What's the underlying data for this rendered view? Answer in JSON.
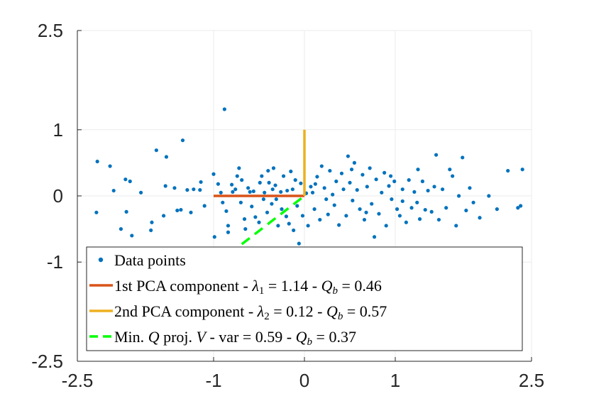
{
  "chart_data": {
    "type": "scatter",
    "title": "",
    "xlabel": "",
    "ylabel": "",
    "xlim": [
      -2.5,
      2.5
    ],
    "ylim": [
      -2.5,
      2.5
    ],
    "grid": true,
    "legend_location": "bottom",
    "x_ticks": [
      {
        "value": -2.5,
        "label": "-2.5"
      },
      {
        "value": -1,
        "label": "-1"
      },
      {
        "value": 0,
        "label": "0"
      },
      {
        "value": 1,
        "label": "1"
      },
      {
        "value": 2.5,
        "label": "2.5"
      }
    ],
    "y_ticks": [
      {
        "value": -2.5,
        "label": "-2.5"
      },
      {
        "value": -1,
        "label": "-1"
      },
      {
        "value": 0,
        "label": "0"
      },
      {
        "value": 1,
        "label": "1"
      },
      {
        "value": 2.5,
        "label": "2.5"
      }
    ],
    "colors": {
      "data_points": "#0072BD",
      "first_pca": "#D95319",
      "second_pca": "#EDB120",
      "min_q_proj": "#00FF00",
      "grid": "#EBEBEB",
      "axis": "#262626"
    },
    "series": [
      {
        "name": "Data points",
        "kind": "scatter",
        "points": [
          [
            -0.88,
            1.31
          ],
          [
            -1.63,
            0.69
          ],
          [
            -1.34,
            0.84
          ],
          [
            -1.52,
            0.59
          ],
          [
            -2.28,
            0.52
          ],
          [
            -2.14,
            0.45
          ],
          [
            -2.1,
            0.08
          ],
          [
            -1.97,
            0.25
          ],
          [
            -1.92,
            0.22
          ],
          [
            -2.29,
            -0.25
          ],
          [
            -1.96,
            -0.24
          ],
          [
            -2.02,
            -0.5
          ],
          [
            -1.9,
            -0.6
          ],
          [
            -1.68,
            -0.4
          ],
          [
            -1.69,
            -0.52
          ],
          [
            -1.55,
            -0.3
          ],
          [
            -1.53,
            0.15
          ],
          [
            -1.43,
            0.12
          ],
          [
            -1.36,
            -0.21
          ],
          [
            -1.4,
            -0.22
          ],
          [
            -1.29,
            0.09
          ],
          [
            -1.22,
            0.1
          ],
          [
            -1.25,
            -0.25
          ],
          [
            -1.15,
            0.09
          ],
          [
            -1.14,
            0.21
          ],
          [
            -1.0,
            0.33
          ],
          [
            -0.99,
            -0.62
          ],
          [
            -0.95,
            0.18
          ],
          [
            -0.92,
            0.05
          ],
          [
            -0.9,
            -0.1
          ],
          [
            -0.86,
            -0.23
          ],
          [
            -0.84,
            -0.45
          ],
          [
            -0.84,
            -0.55
          ],
          [
            -0.8,
            0.17
          ],
          [
            -0.79,
            0.06
          ],
          [
            -0.76,
            0.1
          ],
          [
            -0.74,
            0.3
          ],
          [
            -0.72,
            0.42
          ],
          [
            -0.7,
            -0.1
          ],
          [
            -0.69,
            0.24
          ],
          [
            -0.66,
            -0.35
          ],
          [
            -0.65,
            -0.5
          ],
          [
            -0.62,
            0.12
          ],
          [
            -0.6,
            0.06
          ],
          [
            -0.58,
            -0.16
          ],
          [
            -0.56,
            0.07
          ],
          [
            -0.54,
            -0.32
          ],
          [
            -0.5,
            -0.4
          ],
          [
            -0.49,
            0.2
          ],
          [
            -0.47,
            0.3
          ],
          [
            -0.44,
            0.05
          ],
          [
            -0.41,
            -0.25
          ],
          [
            -0.4,
            0.38
          ],
          [
            -0.39,
            0.2
          ],
          [
            -0.36,
            -0.12
          ],
          [
            -0.34,
            0.42
          ],
          [
            -0.32,
            0.16
          ],
          [
            -0.31,
            -0.05
          ],
          [
            -0.29,
            -0.45
          ],
          [
            -0.26,
            0.06
          ],
          [
            -0.25,
            -0.2
          ],
          [
            -0.23,
            0.3
          ],
          [
            -0.2,
            -0.31
          ],
          [
            -0.19,
            0.08
          ],
          [
            -0.17,
            -0.42
          ],
          [
            -0.15,
            0.37
          ],
          [
            -0.13,
            0.1
          ],
          [
            -0.12,
            -0.52
          ],
          [
            -0.1,
            0.24
          ],
          [
            -0.08,
            -0.15
          ],
          [
            -0.06,
            -0.72
          ],
          [
            -0.04,
            0.19
          ],
          [
            -0.02,
            -0.3
          ],
          [
            0.02,
            0.04
          ],
          [
            0.04,
            -0.45
          ],
          [
            0.07,
            0.14
          ],
          [
            0.09,
            0.05
          ],
          [
            0.11,
            -0.2
          ],
          [
            0.14,
            0.29
          ],
          [
            0.17,
            -0.36
          ],
          [
            0.19,
            0.45
          ],
          [
            0.22,
            0.12
          ],
          [
            0.24,
            -0.05
          ],
          [
            0.26,
            -0.28
          ],
          [
            0.28,
            0.38
          ],
          [
            0.31,
            0.02
          ],
          [
            0.33,
            -0.14
          ],
          [
            0.35,
            0.22
          ],
          [
            0.38,
            -0.44
          ],
          [
            0.41,
            0.34
          ],
          [
            0.43,
            0.1
          ],
          [
            0.46,
            -0.3
          ],
          [
            0.48,
            0.6
          ],
          [
            0.5,
            0.2
          ],
          [
            0.53,
            -0.07
          ],
          [
            0.55,
            0.5
          ],
          [
            0.58,
            0.09
          ],
          [
            0.61,
            -0.2
          ],
          [
            0.64,
            0.32
          ],
          [
            0.66,
            -0.36
          ],
          [
            0.69,
            0.14
          ],
          [
            0.72,
            0.42
          ],
          [
            0.74,
            -0.12
          ],
          [
            0.77,
            -0.62
          ],
          [
            0.79,
            0.25
          ],
          [
            0.82,
            -0.27
          ],
          [
            0.85,
            0.05
          ],
          [
            0.88,
            0.35
          ],
          [
            0.9,
            -0.45
          ],
          [
            0.93,
            0.15
          ],
          [
            0.96,
            -0.05
          ],
          [
            0.99,
            0.22
          ],
          [
            1.02,
            -0.2
          ],
          [
            1.05,
            -0.3
          ],
          [
            1.08,
            0.1
          ],
          [
            1.12,
            -0.4
          ],
          [
            1.15,
            0.24
          ],
          [
            1.18,
            -0.18
          ],
          [
            1.21,
            0.06
          ],
          [
            1.24,
            -0.1
          ],
          [
            1.27,
            -0.35
          ],
          [
            1.3,
            0.22
          ],
          [
            1.33,
            -0.21
          ],
          [
            1.36,
            0.08
          ],
          [
            1.4,
            -0.24
          ],
          [
            1.43,
            0.14
          ],
          [
            1.45,
            0.62
          ],
          [
            1.48,
            -0.36
          ],
          [
            1.52,
            0.1
          ],
          [
            1.56,
            -0.18
          ],
          [
            1.6,
            0.4
          ],
          [
            1.63,
            0.3
          ],
          [
            1.67,
            -0.45
          ],
          [
            1.7,
            0.0
          ],
          [
            1.74,
            0.58
          ],
          [
            1.78,
            -0.22
          ],
          [
            1.82,
            0.12
          ],
          [
            1.86,
            -0.1
          ],
          [
            1.93,
            -0.33
          ],
          [
            2.03,
            0.0
          ],
          [
            2.12,
            -0.2
          ],
          [
            2.24,
            0.38
          ],
          [
            2.35,
            -0.18
          ],
          [
            2.38,
            -0.15
          ],
          [
            2.4,
            0.4
          ],
          [
            -1.8,
            0.05
          ],
          [
            -1.1,
            -0.15
          ],
          [
            -0.35,
            0.1
          ],
          [
            0.12,
            0.18
          ],
          [
            0.52,
            0.4
          ],
          [
            0.95,
            0.3
          ],
          [
            1.25,
            0.4
          ],
          [
            -0.45,
            -0.05
          ],
          [
            0.68,
            -0.25
          ],
          [
            1.08,
            -0.08
          ]
        ]
      },
      {
        "name": "1st PCA component",
        "kind": "line",
        "style": "solid",
        "points": [
          [
            -1.0,
            0.0
          ],
          [
            0.0,
            0.0
          ]
        ]
      },
      {
        "name": "2nd PCA component",
        "kind": "line",
        "style": "solid",
        "points": [
          [
            0.0,
            0.0
          ],
          [
            0.0,
            1.0
          ]
        ]
      },
      {
        "name": "Min. Q proj. V",
        "kind": "line",
        "style": "dashed",
        "points": [
          [
            -0.69,
            -0.73
          ],
          [
            0.0,
            0.0
          ]
        ]
      }
    ],
    "legend": [
      {
        "series": 0,
        "kind": "marker",
        "text": "Data points",
        "parts": [
          {
            "t": "Data points",
            "f": "n"
          }
        ]
      },
      {
        "series": 1,
        "kind": "line",
        "text": "1st PCA component - λ1 = 1.14 - Qb = 0.46",
        "parts": [
          {
            "t": "1st PCA component - ",
            "f": "n"
          },
          {
            "t": "λ",
            "f": "i"
          },
          {
            "t": "1",
            "f": "sub"
          },
          {
            "t": " = 1.14 - ",
            "f": "n"
          },
          {
            "t": "Q",
            "f": "i"
          },
          {
            "t": "b",
            "f": "isub"
          },
          {
            "t": " = 0.46",
            "f": "n"
          }
        ]
      },
      {
        "series": 2,
        "kind": "line",
        "text": "2nd PCA component - λ2 = 0.12 - Qb = 0.57",
        "parts": [
          {
            "t": "2nd PCA component - ",
            "f": "n"
          },
          {
            "t": "λ",
            "f": "i"
          },
          {
            "t": "2",
            "f": "sub"
          },
          {
            "t": " = 0.12 - ",
            "f": "n"
          },
          {
            "t": "Q",
            "f": "i"
          },
          {
            "t": "b",
            "f": "isub"
          },
          {
            "t": " = 0.57",
            "f": "n"
          }
        ]
      },
      {
        "series": 3,
        "kind": "dashed",
        "text": "Min. Q proj. V - var = 0.59 - Qb = 0.37",
        "parts": [
          {
            "t": "Min. ",
            "f": "n"
          },
          {
            "t": "Q",
            "f": "i"
          },
          {
            "t": " proj. ",
            "f": "n"
          },
          {
            "t": "V",
            "f": "i"
          },
          {
            "t": " - var = 0.59 - ",
            "f": "n"
          },
          {
            "t": "Q",
            "f": "i"
          },
          {
            "t": "b",
            "f": "isub"
          },
          {
            "t": " = 0.37",
            "f": "n"
          }
        ]
      }
    ]
  }
}
